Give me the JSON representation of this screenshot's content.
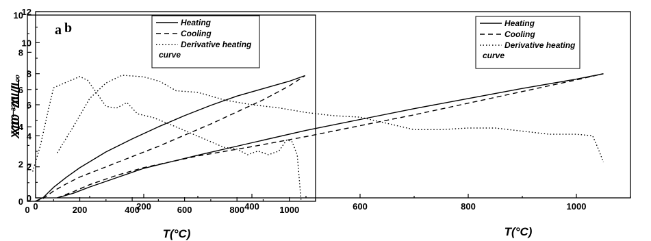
{
  "chart_data": [
    {
      "panel_label": "a",
      "type": "line",
      "xlabel": "T(°C)",
      "ylabel": "X10⁻³ΔL/L₀",
      "xlim": [
        0,
        1100
      ],
      "ylim": [
        0,
        10
      ],
      "x_ticks": [
        0,
        200,
        400,
        600,
        800,
        1000
      ],
      "y_ticks": [
        0,
        2,
        4,
        6,
        8,
        10
      ],
      "legend_position": "top-right",
      "series": [
        {
          "name": "Heating",
          "style": "solid",
          "x": [
            30,
            60,
            100,
            150,
            200,
            300,
            400,
            500,
            600,
            700,
            800,
            900,
            1000,
            1060
          ],
          "y": [
            0,
            0.2,
            0.75,
            1.3,
            1.8,
            2.65,
            3.35,
            4.0,
            4.6,
            5.15,
            5.65,
            6.05,
            6.45,
            6.75
          ]
        },
        {
          "name": "Cooling",
          "style": "dashed",
          "x": [
            30,
            60,
            100,
            150,
            200,
            300,
            400,
            500,
            600,
            700,
            800,
            900,
            1000,
            1060
          ],
          "y": [
            0,
            0.15,
            0.55,
            0.95,
            1.3,
            1.85,
            2.4,
            2.95,
            3.55,
            4.15,
            4.8,
            5.45,
            6.2,
            6.75
          ]
        },
        {
          "name": "Derivative heating curve",
          "style": "dotted",
          "x": [
            20,
            50,
            80,
            100,
            150,
            200,
            230,
            260,
            300,
            340,
            380,
            420,
            480,
            550,
            600,
            650,
            700,
            750,
            800,
            840,
            880,
            920,
            960,
            990,
            1010,
            1030,
            1045
          ],
          "y": [
            1.6,
            3.0,
            4.9,
            6.1,
            6.4,
            6.7,
            6.5,
            5.9,
            5.1,
            5.0,
            5.3,
            4.7,
            4.5,
            4.1,
            3.8,
            3.5,
            3.2,
            2.9,
            2.8,
            2.5,
            2.7,
            2.5,
            2.7,
            3.3,
            3.2,
            2.5,
            0
          ]
        }
      ]
    },
    {
      "panel_label": "b",
      "type": "line",
      "xlabel": "T(°C)",
      "ylabel": "X10⁻³ΔL/L₀",
      "xlim": [
        0,
        1100
      ],
      "ylim": [
        0,
        12
      ],
      "x_ticks": [
        0,
        200,
        400,
        600,
        800,
        1000
      ],
      "y_ticks": [
        0,
        2,
        4,
        6,
        8,
        10,
        12
      ],
      "legend_position": "top-right",
      "series": [
        {
          "name": "Heating",
          "style": "solid",
          "x": [
            40,
            70,
            100,
            150,
            200,
            300,
            400,
            500,
            600,
            700,
            800,
            900,
            1000,
            1050
          ],
          "y": [
            0,
            0.3,
            0.7,
            1.3,
            1.9,
            2.75,
            3.55,
            4.35,
            5.05,
            5.75,
            6.4,
            7.05,
            7.65,
            8.0
          ]
        },
        {
          "name": "Cooling",
          "style": "dashed",
          "x": [
            40,
            70,
            100,
            150,
            200,
            300,
            400,
            500,
            600,
            700,
            800,
            900,
            1000,
            1050
          ],
          "y": [
            0,
            0.4,
            0.85,
            1.45,
            1.95,
            2.7,
            3.3,
            3.95,
            4.65,
            5.35,
            6.1,
            6.85,
            7.6,
            8.0
          ]
        },
        {
          "name": "Derivative heating curve",
          "style": "dotted",
          "x": [
            40,
            70,
            100,
            130,
            160,
            200,
            230,
            260,
            300,
            350,
            400,
            450,
            500,
            550,
            600,
            650,
            700,
            750,
            800,
            850,
            900,
            950,
            1000,
            1030,
            1040,
            1050
          ],
          "y": [
            2.9,
            4.6,
            6.4,
            7.4,
            7.9,
            7.8,
            7.5,
            6.9,
            6.8,
            6.3,
            6.0,
            5.8,
            5.5,
            5.3,
            5.2,
            4.8,
            4.4,
            4.4,
            4.5,
            4.5,
            4.3,
            4.1,
            4.1,
            4.0,
            3.2,
            2.3
          ]
        }
      ]
    }
  ]
}
